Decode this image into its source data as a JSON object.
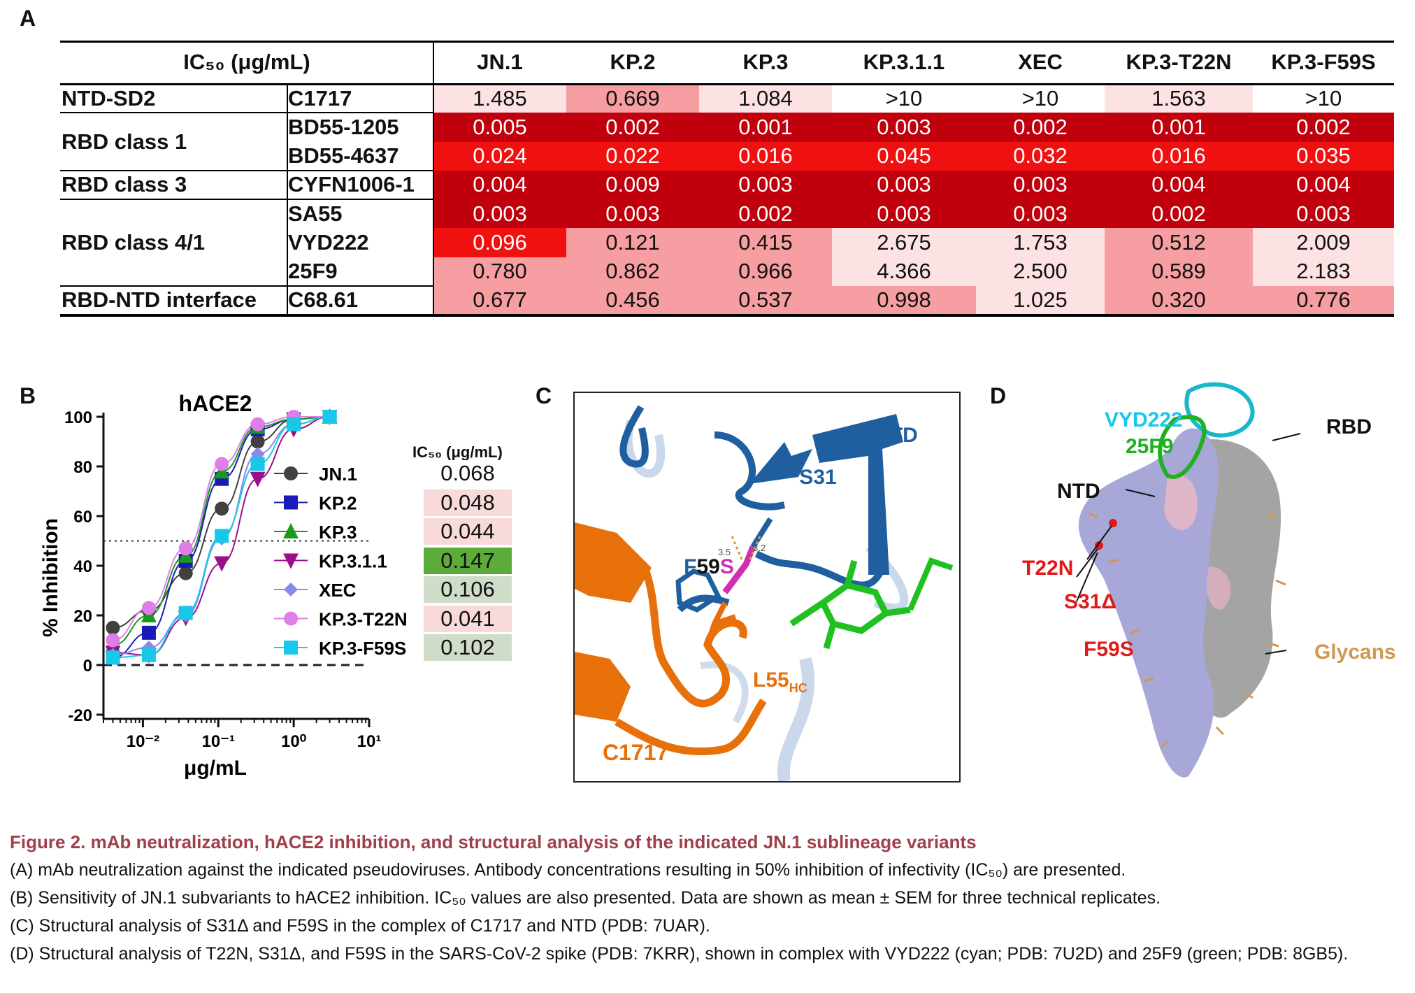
{
  "panel_labels": {
    "a": "A",
    "b": "B",
    "c": "C",
    "d": "D"
  },
  "table": {
    "header": "IC₅₀ (μg/mL)",
    "columns": [
      "JN.1",
      "KP.2",
      "KP.3",
      "KP.3.1.1",
      "XEC",
      "KP.3-T22N",
      "KP.3-F59S"
    ],
    "groups": [
      {
        "label": "NTD-SD2",
        "antibodies": [
          "C1717"
        ]
      },
      {
        "label": "RBD class 1",
        "antibodies": [
          "BD55-1205",
          "BD55-4637"
        ]
      },
      {
        "label": "RBD class 3",
        "antibodies": [
          "CYFN1006-1"
        ]
      },
      {
        "label": "RBD class 4/1",
        "antibodies": [
          "SA55",
          "VYD222",
          "25F9"
        ]
      },
      {
        "label": "RBD-NTD interface",
        "antibodies": [
          "C68.61"
        ]
      }
    ],
    "rows": [
      [
        "1.485",
        "0.669",
        "1.084",
        ">10",
        ">10",
        "1.563",
        ">10"
      ],
      [
        "0.005",
        "0.002",
        "0.001",
        "0.003",
        "0.002",
        "0.001",
        "0.002"
      ],
      [
        "0.024",
        "0.022",
        "0.016",
        "0.045",
        "0.032",
        "0.016",
        "0.035"
      ],
      [
        "0.004",
        "0.009",
        "0.003",
        "0.003",
        "0.003",
        "0.004",
        "0.004"
      ],
      [
        "0.003",
        "0.003",
        "0.002",
        "0.003",
        "0.003",
        "0.002",
        "0.003"
      ],
      [
        "0.096",
        "0.121",
        "0.415",
        "2.675",
        "1.753",
        "0.512",
        "2.009"
      ],
      [
        "0.780",
        "0.862",
        "0.966",
        "4.366",
        "2.500",
        "0.589",
        "2.183"
      ],
      [
        "0.677",
        "0.456",
        "0.537",
        "0.998",
        "1.025",
        "0.320",
        "0.776"
      ]
    ],
    "row_colors": [
      [
        "#fde2e4",
        "#f79ea2",
        "#fde2e4",
        "#ffffff",
        "#ffffff",
        "#fde2e4",
        "#ffffff"
      ],
      [
        "#c0000c",
        "#c0000c",
        "#c0000c",
        "#c0000c",
        "#c0000c",
        "#c0000c",
        "#c0000c"
      ],
      [
        "#f01010",
        "#f01010",
        "#f01010",
        "#f01010",
        "#f01010",
        "#f01010",
        "#f01010"
      ],
      [
        "#c0000c",
        "#c0000c",
        "#c0000c",
        "#c0000c",
        "#c0000c",
        "#c0000c",
        "#c0000c"
      ],
      [
        "#c0000c",
        "#c0000c",
        "#c0000c",
        "#c0000c",
        "#c0000c",
        "#c0000c",
        "#c0000c"
      ],
      [
        "#f01010",
        "#f79ea2",
        "#f79ea2",
        "#fde2e4",
        "#fde2e4",
        "#f79ea2",
        "#fde2e4"
      ],
      [
        "#f79ea2",
        "#f79ea2",
        "#f79ea2",
        "#fde2e4",
        "#fde2e4",
        "#f79ea2",
        "#fde2e4"
      ],
      [
        "#f79ea2",
        "#f79ea2",
        "#f79ea2",
        "#f79ea2",
        "#fde2e4",
        "#f79ea2",
        "#f79ea2"
      ]
    ]
  },
  "chart_data": {
    "type": "line",
    "title": "hACE2",
    "xlabel": "μg/mL",
    "ylabel": "% Inhibition",
    "xscale": "log",
    "xlim": [
      0.003,
      10
    ],
    "ylim": [
      -20,
      100
    ],
    "yticks": [
      -20,
      0,
      20,
      40,
      60,
      80,
      100
    ],
    "xtick_labels": [
      "10⁻²",
      "10⁻¹",
      "10⁰",
      "10¹"
    ],
    "reference_lines": [
      50,
      0
    ],
    "x": [
      0.004,
      0.012,
      0.037,
      0.111,
      0.333,
      1.0,
      3.0
    ],
    "legend_placement": "right",
    "ic50_header": "IC₅₀ (μg/mL)",
    "series": [
      {
        "name": "JN.1",
        "color": "#404040",
        "marker": "circle",
        "values": [
          15,
          22,
          37,
          63,
          90,
          99,
          100
        ],
        "ic50": "0.068",
        "ic50_bg": "#ffffff"
      },
      {
        "name": "KP.2",
        "color": "#1a1ab8",
        "marker": "square",
        "values": [
          3,
          13,
          42,
          75,
          95,
          99,
          100
        ],
        "ic50": "0.048",
        "ic50_bg": "#f9dada"
      },
      {
        "name": "KP.3",
        "color": "#1a9a1a",
        "marker": "triangle-up",
        "values": [
          8,
          20,
          44,
          78,
          96,
          99,
          100
        ],
        "ic50": "0.044",
        "ic50_bg": "#f9dada"
      },
      {
        "name": "KP.3.1.1",
        "color": "#9a108a",
        "marker": "triangle-down",
        "values": [
          5,
          4,
          19,
          41,
          75,
          95,
          100
        ],
        "ic50": "0.147",
        "ic50_bg": "#5cac3c"
      },
      {
        "name": "XEC",
        "color": "#8a8ae8",
        "marker": "diamond",
        "values": [
          4,
          7,
          20,
          51,
          85,
          97,
          100
        ],
        "ic50": "0.106",
        "ic50_bg": "#cfdcc8"
      },
      {
        "name": "KP.3-T22N",
        "color": "#e07ee8",
        "marker": "circle",
        "values": [
          10,
          23,
          47,
          81,
          97,
          100,
          100
        ],
        "ic50": "0.041",
        "ic50_bg": "#f9dada"
      },
      {
        "name": "KP.3-F59S",
        "color": "#18c8e8",
        "marker": "square",
        "values": [
          3,
          4,
          21,
          52,
          81,
          97,
          100
        ],
        "ic50": "0.102",
        "ic50_bg": "#cfdcc8"
      }
    ]
  },
  "panel_c": {
    "labels": {
      "ntd": "NTD",
      "s31": "S31",
      "f59s_f": "F",
      "f59s_59": "59",
      "f59s_s": "S",
      "l55": "L55",
      "l55_sub": "HC",
      "c1717": "C1717",
      "d1": "3.5",
      "d2": "3.2"
    },
    "colors": {
      "ntd": "#1f5fa0",
      "c1717": "#e8700a",
      "f59s": "#d030b0",
      "glycan": "#20c020"
    }
  },
  "panel_d": {
    "labels": {
      "vyd222": "VYD222",
      "f25f9": "25F9",
      "rbd": "RBD",
      "ntd": "NTD",
      "t22n": "T22N",
      "s31": "S31Δ",
      "f59s": "F59S",
      "glycans": "Glycans"
    },
    "colors": {
      "vyd222": "#18c8e8",
      "f25f9": "#20b020",
      "mutation": "#e01a1a",
      "glycans": "#d09850",
      "spike": "#a8a8d8",
      "spike_grey": "#a0a0a0"
    }
  },
  "caption": {
    "title": "Figure 2.  mAb neutralization, hACE2 inhibition, and structural analysis of the indicated JN.1 sublineage variants",
    "a": "(A) mAb neutralization against the indicated pseudoviruses. Antibody concentrations resulting in 50% inhibition of infectivity (IC₅₀) are presented.",
    "b": "(B) Sensitivity of JN.1 subvariants to hACE2 inhibition. IC₅₀ values are also presented. Data are shown as mean ± SEM for three technical replicates.",
    "c": "(C) Structural analysis of S31Δ and F59S in the complex of C1717 and NTD (PDB: 7UAR).",
    "d": "(D) Structural analysis of T22N, S31Δ, and F59S in the SARS-CoV-2 spike (PDB: 7KRR), shown in complex with VYD222 (cyan; PDB: 7U2D) and 25F9 (green; PDB: 8GB5)."
  }
}
